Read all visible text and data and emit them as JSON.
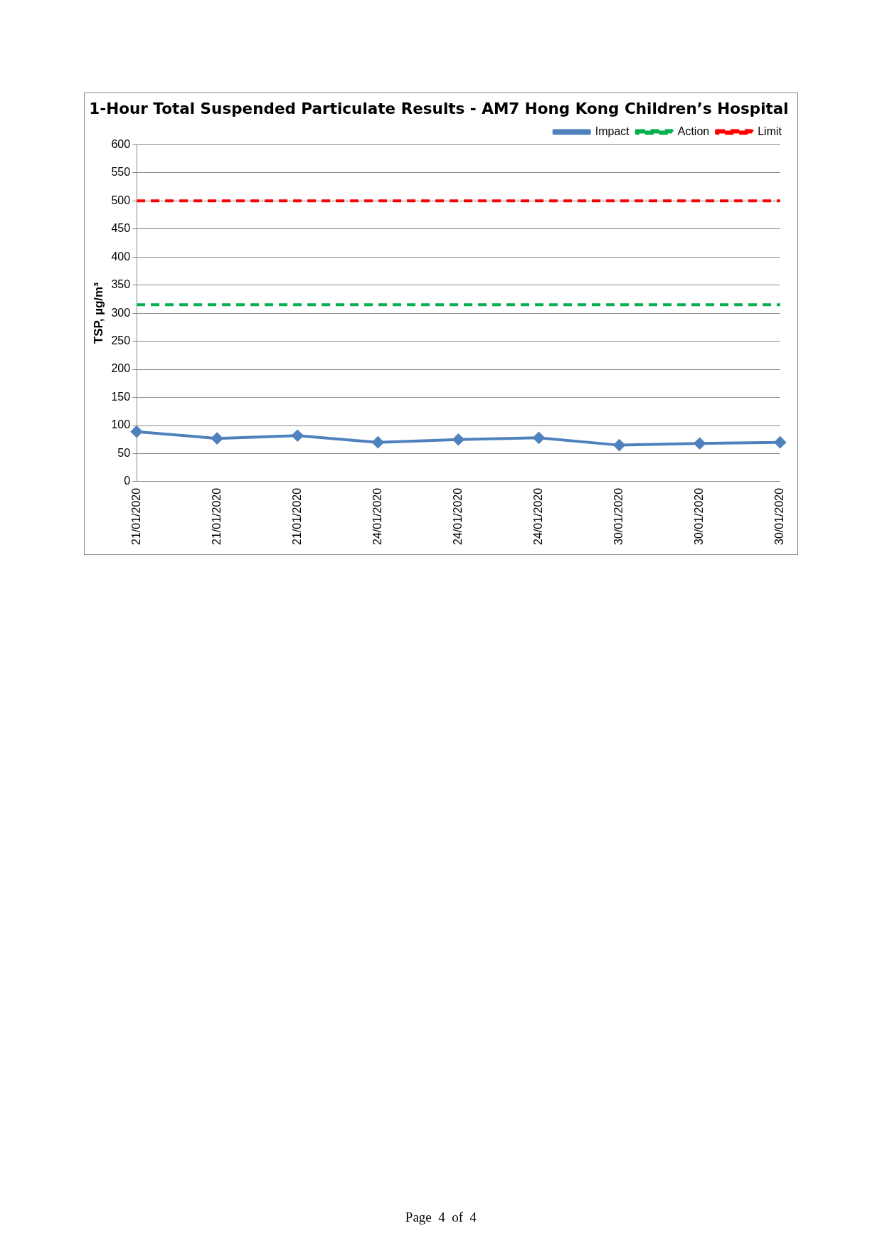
{
  "chart_data": {
    "type": "line",
    "title": "1-Hour Total Suspended Particulate Results - AM7 Hong Kong Children’s Hospital",
    "ylabel": "TSP, µg/m³",
    "categories": [
      "21/01/2020",
      "21/01/2020",
      "21/01/2020",
      "24/01/2020",
      "24/01/2020",
      "24/01/2020",
      "30/01/2020",
      "30/01/2020",
      "30/01/2020"
    ],
    "series": [
      {
        "name": "Impact",
        "color": "#4f81bd",
        "values": [
          89,
          77,
          82,
          70,
          75,
          78,
          65,
          68,
          70
        ],
        "marker": "diamond",
        "line_style": "solid"
      },
      {
        "name": "Action",
        "color": "#00b050",
        "values": [
          315,
          315,
          315,
          315,
          315,
          315,
          315,
          315,
          315
        ],
        "marker": "none",
        "line_style": "dashed"
      },
      {
        "name": "Limit",
        "color": "#ff0000",
        "values": [
          500,
          500,
          500,
          500,
          500,
          500,
          500,
          500,
          500
        ],
        "marker": "none",
        "line_style": "dashed"
      }
    ],
    "ylim": [
      0,
      600
    ],
    "yticks": [
      0,
      50,
      100,
      150,
      200,
      250,
      300,
      350,
      400,
      450,
      500,
      550,
      600
    ],
    "grid": "y",
    "legend": "top right",
    "annotations": [
      "Page  4  of  4"
    ]
  }
}
